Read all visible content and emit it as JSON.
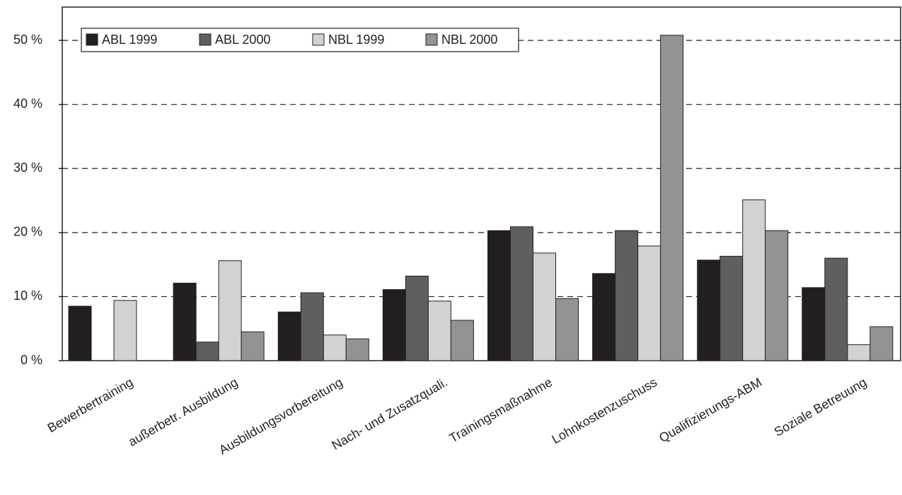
{
  "chart_data": {
    "type": "bar",
    "categories": [
      "Bewerbertraining",
      "außerbetr. Ausbildung",
      "Ausbildungsvorbereitung",
      "Nach- und Zusatzquali.",
      "Trainingsmaßnahme",
      "Lohnkostenzuschuss",
      "Qualifizierungs-ABM",
      "Soziale Betreuung"
    ],
    "series": [
      {
        "name": "ABL 1999",
        "color": "#231f20",
        "values": [
          8.5,
          12.1,
          7.6,
          11.1,
          20.3,
          13.6,
          15.7,
          11.4
        ]
      },
      {
        "name": "ABL 2000",
        "color": "#5f5f61",
        "values": [
          0,
          2.9,
          10.6,
          13.2,
          20.9,
          20.3,
          16.3,
          16.0
        ]
      },
      {
        "name": "NBL 1999",
        "color": "#d2d2d2",
        "values": [
          9.4,
          15.6,
          4.0,
          9.3,
          16.8,
          17.9,
          25.1,
          2.5
        ]
      },
      {
        "name": "NBL 2000",
        "color": "#939396",
        "values": [
          0,
          4.5,
          3.4,
          6.3,
          9.7,
          50.8,
          20.3,
          5.3
        ]
      }
    ],
    "ylim": [
      0,
      55.2
    ],
    "yticks": [
      {
        "value": 0,
        "label": "0 %"
      },
      {
        "value": 10,
        "label": "10 %"
      },
      {
        "value": 20,
        "label": "20 %"
      },
      {
        "value": 30,
        "label": "30 %"
      },
      {
        "value": 40,
        "label": "40 %"
      },
      {
        "value": 50,
        "label": "50 %"
      }
    ],
    "grid": true
  }
}
